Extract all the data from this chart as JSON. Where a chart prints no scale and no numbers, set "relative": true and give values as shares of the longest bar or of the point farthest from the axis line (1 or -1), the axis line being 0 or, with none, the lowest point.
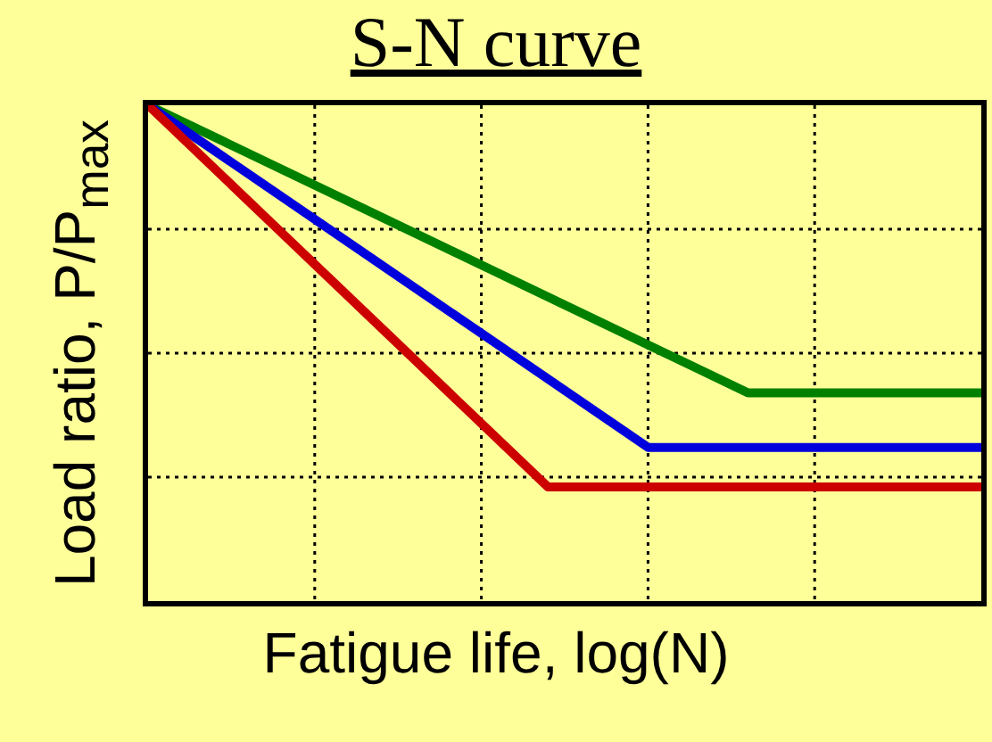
{
  "chart_data": {
    "type": "line",
    "title": "S-N curve",
    "xlabel": "Fatigue life, log(N)",
    "ylabel": "Load ratio, P/P$_{max}$",
    "relative": true,
    "grid": true,
    "legend": false,
    "marker": "none",
    "line_style": "solid",
    "categories": [
      null,
      null,
      null,
      null,
      null,
      null,
      null,
      null,
      null,
      null,
      null,
      null,
      null,
      null,
      null,
      null,
      null,
      null,
      null,
      null,
      null,
      null,
      null,
      null,
      null,
      null
    ],
    "series": [
      {
        "color": "#008000",
        "values": [
          1,
          null,
          null,
          null,
          null,
          null,
          null,
          null,
          null,
          null,
          null,
          null,
          null,
          null,
          null,
          null,
          null,
          null,
          0.42,
          null,
          null,
          null,
          null,
          null,
          null,
          0.42
        ]
      },
      {
        "color": "#0000dd",
        "values": [
          1,
          null,
          null,
          null,
          null,
          null,
          null,
          null,
          null,
          null,
          null,
          null,
          null,
          null,
          null,
          0.31,
          null,
          null,
          null,
          null,
          null,
          null,
          null,
          null,
          null,
          0.31
        ]
      },
      {
        "color": "#cc0000",
        "values": [
          1,
          null,
          null,
          null,
          null,
          null,
          null,
          null,
          null,
          null,
          null,
          null,
          0.23,
          null,
          null,
          null,
          null,
          null,
          null,
          null,
          null,
          null,
          null,
          null,
          null,
          0.23
        ]
      }
    ]
  }
}
